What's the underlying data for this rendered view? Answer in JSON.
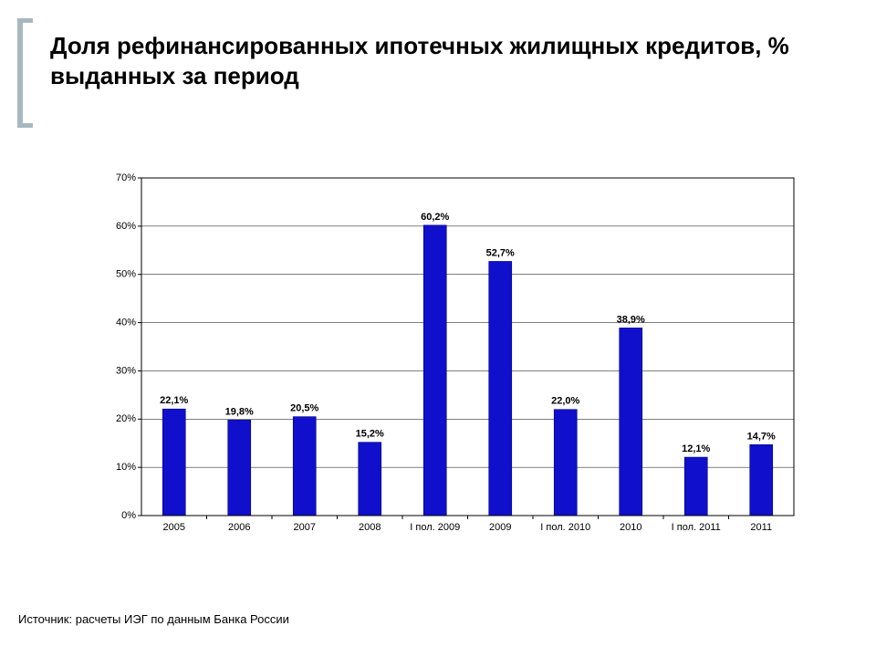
{
  "header": {
    "title": "Доля рефинансированных ипотечных жилищных кредитов, % выданных за период",
    "title_fontsize": 26,
    "title_weight": "bold",
    "title_color": "#000000",
    "bracket_color": "#a8b8c0"
  },
  "chart": {
    "type": "bar",
    "background_color": "#ffffff",
    "plot_border_color": "#000000",
    "grid_color": "#000000",
    "grid_width": 0.5,
    "bar_color": "#1010cc",
    "bar_border_color": "#000080",
    "bar_width_ratio": 0.35,
    "ylim": [
      0,
      70
    ],
    "ytick_step": 10,
    "ytick_suffix": "%",
    "ytick_fontsize": 11,
    "xtick_fontsize": 11,
    "barlabel_fontsize": 11,
    "barlabel_suffix": "%",
    "categories": [
      "2005",
      "2006",
      "2007",
      "2008",
      "I пол. 2009",
      "2009",
      "I пол. 2010",
      "2010",
      "I пол. 2011",
      "2011"
    ],
    "values": [
      22.1,
      19.8,
      20.5,
      15.2,
      60.2,
      52.7,
      22.0,
      38.9,
      12.1,
      14.7
    ],
    "value_labels": [
      "22,1%",
      "19,8%",
      "20,5%",
      "15,2%",
      "60,2%",
      "52,7%",
      "22,0%",
      "38,9%",
      "12,1%",
      "14,7%"
    ]
  },
  "source": {
    "text": "Источник: расчеты ИЭГ по данным Банка России",
    "fontsize": 13,
    "color": "#000000"
  }
}
